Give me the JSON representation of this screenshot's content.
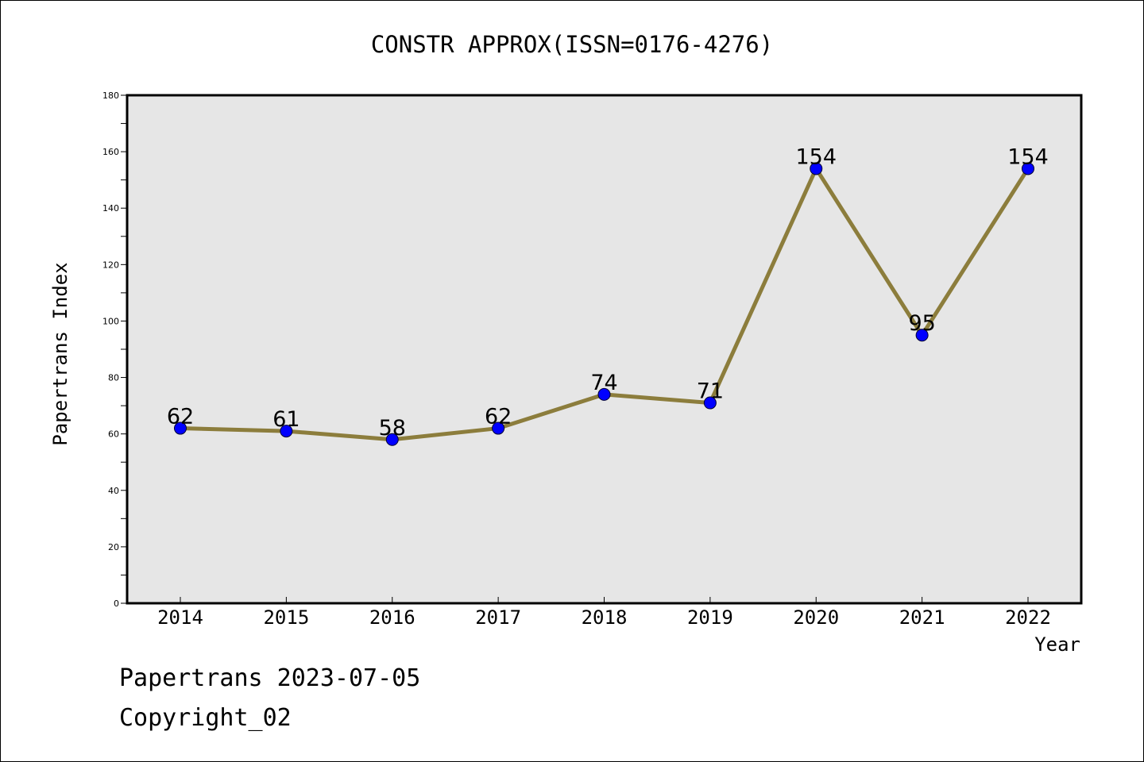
{
  "chart_data": {
    "type": "line",
    "title": "CONSTR APPROX(ISSN=0176-4276)",
    "xlabel": "Year",
    "ylabel": "Papertrans Index",
    "categories": [
      "2014",
      "2015",
      "2016",
      "2017",
      "2018",
      "2019",
      "2020",
      "2021",
      "2022"
    ],
    "values": [
      62,
      61,
      58,
      62,
      74,
      71,
      154,
      95,
      154
    ],
    "ylim": [
      0,
      180
    ],
    "yticks": [
      0,
      20,
      40,
      60,
      80,
      100,
      120,
      140,
      160,
      180
    ],
    "grid": false,
    "legend": "none"
  },
  "footer": {
    "line1": "Papertrans 2023-07-05",
    "line2": "Copyright_02"
  },
  "colors": {
    "line": "#8c7d3c",
    "marker": "#0000ff",
    "plot_bg": "#e6e6e6"
  }
}
